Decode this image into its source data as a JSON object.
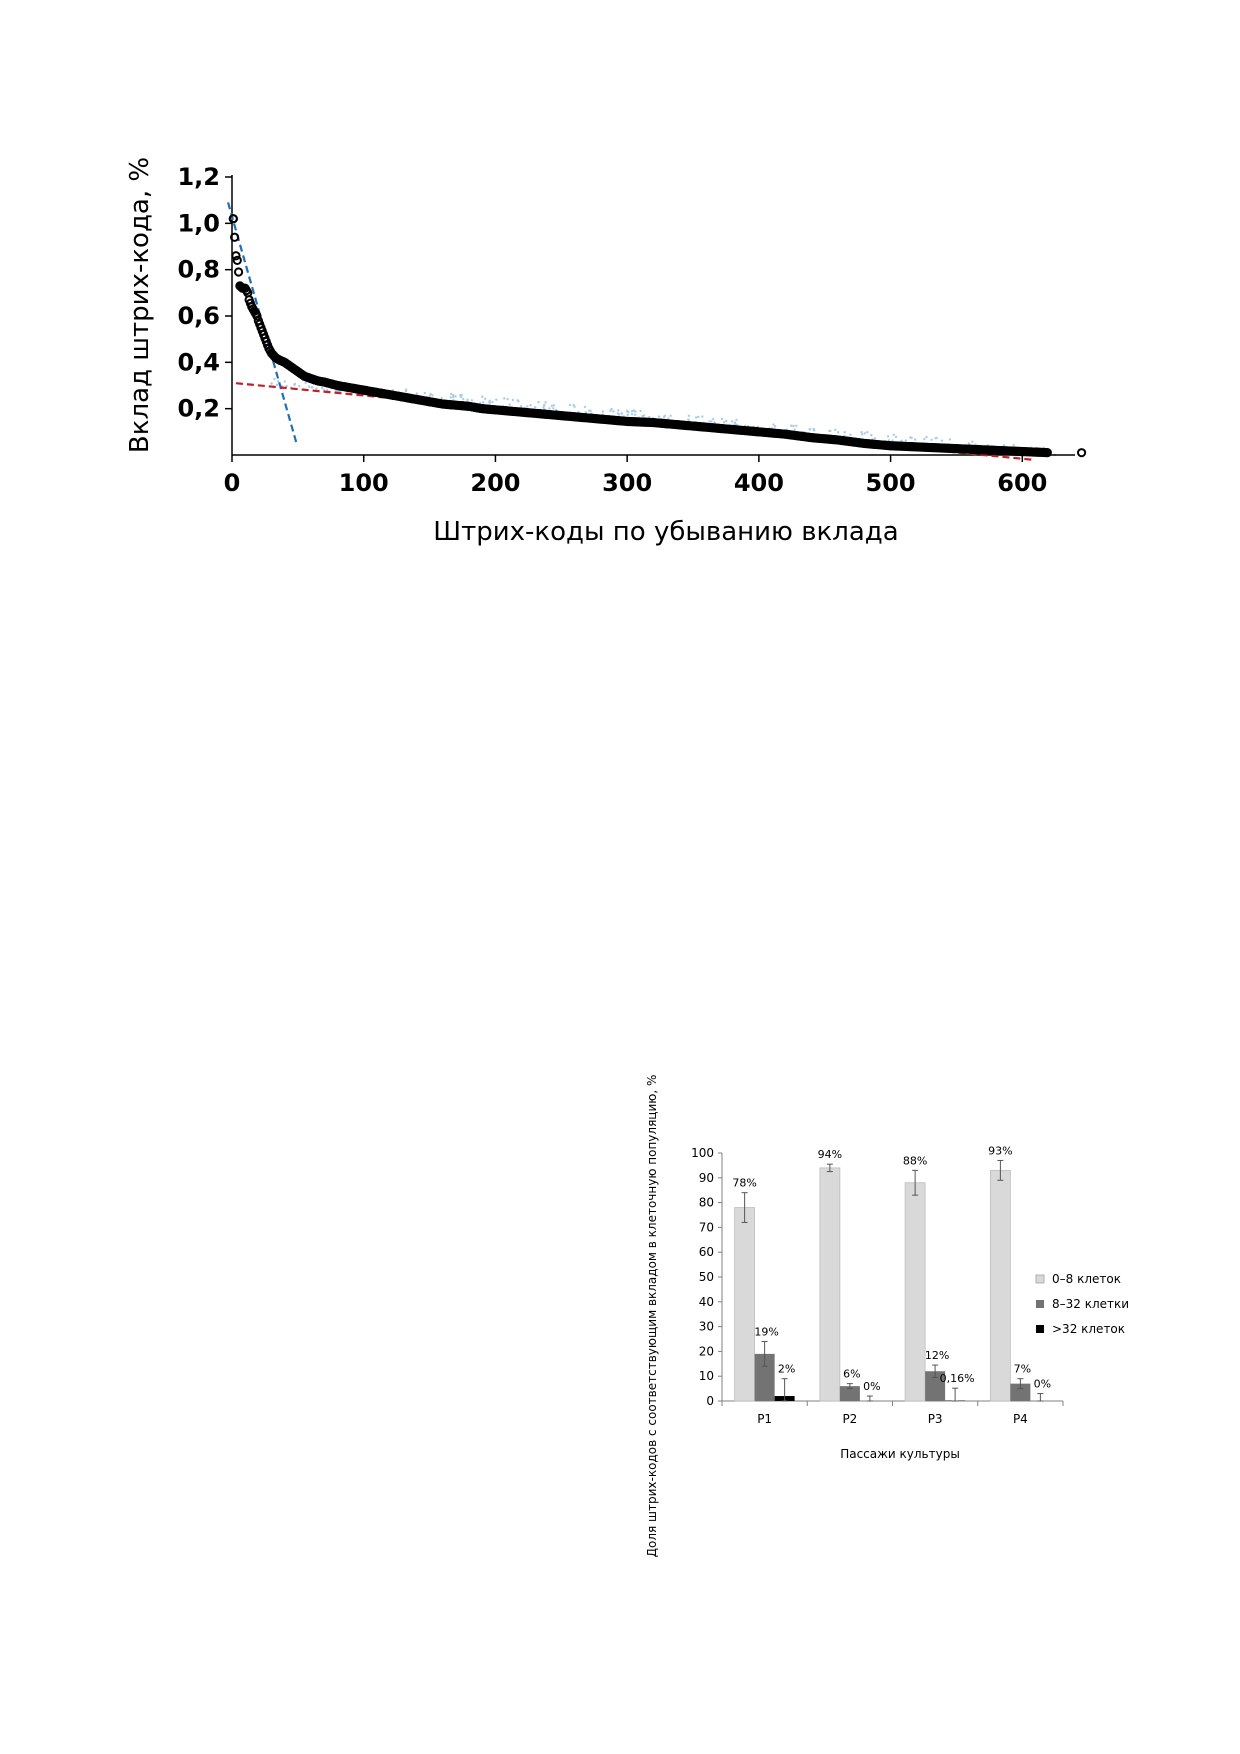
{
  "chart_data": [
    {
      "type": "scatter",
      "xlabel": "Штрих-коды по убыванию вклада",
      "ylabel": "Вклад штрих-кода, %",
      "xlim": [
        0,
        640
      ],
      "ylim": [
        0,
        1.2
      ],
      "x_ticks": [
        "0",
        "100",
        "200",
        "300",
        "400",
        "500",
        "600"
      ],
      "y_ticks": [
        "0,2",
        "0,4",
        "0,6",
        "0,8",
        "1,0",
        "1,2"
      ],
      "grid": false,
      "points": [
        [
          1,
          1.02
        ],
        [
          3,
          0.86
        ],
        [
          4,
          0.84
        ],
        [
          5,
          0.79
        ],
        [
          6,
          0.73
        ],
        [
          8,
          0.72
        ],
        [
          10,
          0.72
        ],
        [
          12,
          0.7
        ],
        [
          13,
          0.67
        ],
        [
          15,
          0.64
        ],
        [
          17,
          0.62
        ],
        [
          19,
          0.6
        ],
        [
          20,
          0.58
        ],
        [
          22,
          0.55
        ],
        [
          24,
          0.52
        ],
        [
          26,
          0.49
        ],
        [
          28,
          0.46
        ],
        [
          30,
          0.44
        ],
        [
          33,
          0.42
        ],
        [
          36,
          0.41
        ],
        [
          40,
          0.4
        ],
        [
          45,
          0.38
        ],
        [
          50,
          0.36
        ],
        [
          55,
          0.34
        ],
        [
          60,
          0.33
        ],
        [
          65,
          0.32
        ],
        [
          70,
          0.315
        ],
        [
          80,
          0.3
        ],
        [
          90,
          0.29
        ],
        [
          100,
          0.28
        ],
        [
          110,
          0.27
        ],
        [
          120,
          0.26
        ],
        [
          130,
          0.25
        ],
        [
          140,
          0.24
        ],
        [
          150,
          0.23
        ],
        [
          160,
          0.22
        ],
        [
          170,
          0.215
        ],
        [
          180,
          0.21
        ],
        [
          190,
          0.2
        ],
        [
          200,
          0.195
        ],
        [
          220,
          0.185
        ],
        [
          240,
          0.175
        ],
        [
          260,
          0.165
        ],
        [
          280,
          0.155
        ],
        [
          300,
          0.145
        ],
        [
          320,
          0.14
        ],
        [
          340,
          0.13
        ],
        [
          360,
          0.12
        ],
        [
          380,
          0.11
        ],
        [
          400,
          0.1
        ],
        [
          420,
          0.09
        ],
        [
          440,
          0.075
        ],
        [
          460,
          0.065
        ],
        [
          480,
          0.05
        ],
        [
          500,
          0.04
        ],
        [
          520,
          0.035
        ],
        [
          540,
          0.03
        ],
        [
          560,
          0.025
        ],
        [
          580,
          0.02
        ],
        [
          600,
          0.015
        ],
        [
          620,
          0.01
        ],
        [
          645,
          0.01
        ]
      ],
      "trendlines": [
        {
          "color": "#1f6fb5",
          "from": [
            -3,
            1.09
          ],
          "to": [
            49,
            0.05
          ]
        },
        {
          "color": "#c0202a",
          "from": [
            3,
            0.31
          ],
          "to": [
            607,
            -0.02
          ]
        }
      ],
      "colors": {
        "points": "#000000",
        "noise": "#a8cde8"
      }
    },
    {
      "type": "bar",
      "xlabel": "Пассажи культуры",
      "ylabel": "Доля штрих-кодов с соответствующим вкладом в клеточную популяцию, %",
      "ylim": [
        0,
        100
      ],
      "y_ticks": [
        "0",
        "10",
        "20",
        "30",
        "40",
        "50",
        "60",
        "70",
        "80",
        "90",
        "100"
      ],
      "categories": [
        "P1",
        "P2",
        "P3",
        "P4"
      ],
      "legend_position": "right",
      "series": [
        {
          "name": "0–8 клеток",
          "color": "#d9d9d9",
          "values": [
            78,
            94,
            88,
            93
          ],
          "errors": [
            6,
            1.5,
            5,
            4
          ],
          "labels": [
            "78%",
            "94%",
            "88%",
            "93%"
          ]
        },
        {
          "name": "8–32 клетки",
          "color": "#737373",
          "values": [
            19,
            6,
            12,
            7
          ],
          "errors": [
            5,
            1,
            2.5,
            2
          ],
          "labels": [
            "19%",
            "6%",
            "12%",
            "7%"
          ]
        },
        {
          "name": ">32 клеток",
          "color": "#000000",
          "values": [
            2,
            0,
            0.16,
            0
          ],
          "errors": [
            7,
            2,
            5,
            3
          ],
          "labels": [
            "2%",
            "0%",
            "0,16%",
            "0%"
          ]
        }
      ]
    }
  ]
}
